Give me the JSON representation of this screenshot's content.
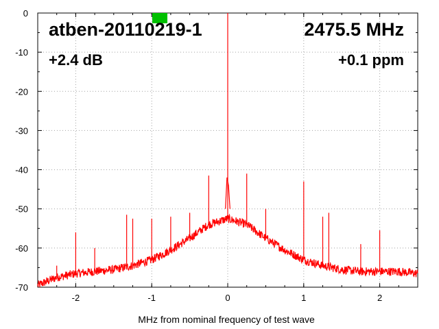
{
  "chart_data": {
    "type": "line",
    "title": "atben-20110219-1",
    "frequency_label": "2475.5 MHz",
    "gain_label": "+2.4 dB",
    "ppm_label": "+0.1 ppm",
    "xlabel": "MHz from nominal frequency of test wave",
    "ylabel": "",
    "xlim": [
      -2.5,
      2.5
    ],
    "ylim": [
      -70,
      0
    ],
    "x_ticks": [
      -2,
      -1,
      0,
      1,
      2
    ],
    "x_tick_labels": [
      "-2",
      "-1",
      "0",
      "1",
      "2"
    ],
    "y_ticks": [
      0,
      -10,
      -20,
      -30,
      -40,
      -50,
      -60,
      -70
    ],
    "y_tick_labels": [
      "0",
      "-10",
      "-20",
      "-30",
      "-40",
      "-50",
      "-60",
      "-70"
    ],
    "grid": true,
    "grid_style": "dotted",
    "line_color": "#ff0000",
    "status_indicator_color": "#00c000",
    "noise_floor": {
      "x": [
        -2.5,
        -2.25,
        -2.0,
        -1.75,
        -1.5,
        -1.25,
        -1.0,
        -0.75,
        -0.5,
        -0.25,
        0.0,
        0.25,
        0.5,
        0.75,
        1.0,
        1.25,
        1.5,
        1.75,
        2.0,
        2.25,
        2.5
      ],
      "y": [
        -69.5,
        -67.5,
        -66.5,
        -66,
        -65.5,
        -64.5,
        -63,
        -60.5,
        -57.5,
        -54,
        -52.5,
        -54,
        -57.5,
        -60.5,
        -63,
        -64.5,
        -65.5,
        -66,
        -66,
        -66,
        -66.5
      ]
    },
    "spurs": [
      {
        "x": 0.0,
        "y": 0
      },
      {
        "x": -2.0,
        "y": -56
      },
      {
        "x": -1.75,
        "y": -60
      },
      {
        "x": -1.33,
        "y": -51.5
      },
      {
        "x": -1.25,
        "y": -52.5
      },
      {
        "x": -1.0,
        "y": -52.5
      },
      {
        "x": -0.75,
        "y": -52
      },
      {
        "x": -0.5,
        "y": -51
      },
      {
        "x": -0.25,
        "y": -41.5
      },
      {
        "x": 0.25,
        "y": -41
      },
      {
        "x": 0.5,
        "y": -50
      },
      {
        "x": 1.0,
        "y": -43
      },
      {
        "x": 1.25,
        "y": -52
      },
      {
        "x": 1.33,
        "y": -51
      },
      {
        "x": 1.75,
        "y": -59
      },
      {
        "x": 2.0,
        "y": -55.5
      },
      {
        "x": -2.25,
        "y": -64.5
      }
    ]
  }
}
